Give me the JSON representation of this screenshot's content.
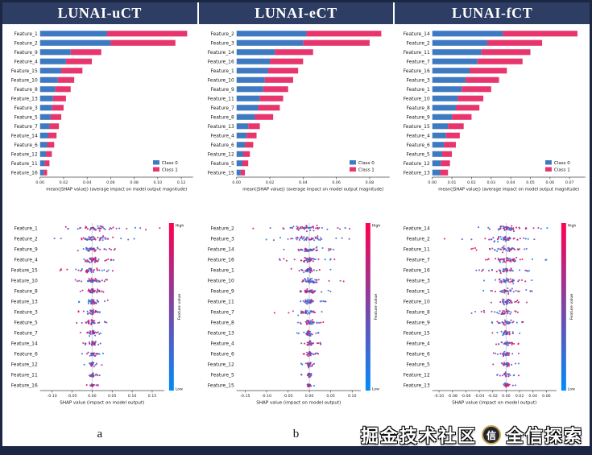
{
  "theme": {
    "header_bg": "#2e3d64",
    "frame_border": "#1c2743",
    "class0_color": "#3e7ac2",
    "class1_color": "#e8356d",
    "beeswarm_low_color": "#008bfb",
    "beeswarm_high_color": "#ff0051",
    "beeswarm_mid_color": "#7d45a5",
    "zero_line_color": "#d0d0d0"
  },
  "watermark": {
    "site": "掘金技术社区",
    "badge": "信",
    "author": "全信探索"
  },
  "panels": [
    {
      "title": "LUNAI-uCT",
      "caption": "a"
    },
    {
      "title": "LUNAI-eCT",
      "caption": "b"
    },
    {
      "title": "LUNAI-fCT",
      "caption": "c"
    }
  ],
  "chart_data": [
    {
      "panel": "LUNAI-uCT",
      "type": "bar",
      "orientation": "horizontal",
      "stacked": true,
      "xlabel": "mean(|SHAP value|) (average impact on model output magnitude)",
      "categories": [
        "Feature_1",
        "Feature_2",
        "Feature_9",
        "Feature_4",
        "Feature_15",
        "Feature_10",
        "Feature_8",
        "Feature_13",
        "Feature_3",
        "Feature_5",
        "Feature_7",
        "Feature_14",
        "Feature_6",
        "Feature_12",
        "Feature_11",
        "Feature_16"
      ],
      "series": [
        {
          "name": "Class 0",
          "color": "#3e7ac2",
          "values": [
            0.057,
            0.06,
            0.026,
            0.022,
            0.018,
            0.015,
            0.013,
            0.011,
            0.01,
            0.009,
            0.008,
            0.007,
            0.006,
            0.005,
            0.004,
            0.003
          ]
        },
        {
          "name": "Class 1",
          "color": "#e8356d",
          "values": [
            0.068,
            0.055,
            0.026,
            0.022,
            0.018,
            0.014,
            0.013,
            0.011,
            0.01,
            0.009,
            0.008,
            0.007,
            0.006,
            0.005,
            0.004,
            0.003
          ]
        }
      ],
      "xlim": [
        0,
        0.13
      ],
      "xticks": [
        0.0,
        0.02,
        0.04,
        0.06,
        0.08,
        0.1,
        0.12
      ],
      "legend_position": "lower right"
    },
    {
      "panel": "LUNAI-uCT",
      "type": "scatter",
      "subtype": "shap-beeswarm",
      "xlabel": "SHAP value (impact on model output)",
      "categories": [
        "Feature_1",
        "Feature_2",
        "Feature_9",
        "Feature_4",
        "Feature_15",
        "Feature_10",
        "Feature_8",
        "Feature_13",
        "Feature_3",
        "Feature_5",
        "Feature_7",
        "Feature_14",
        "Feature_6",
        "Feature_12",
        "Feature_11",
        "Feature_16"
      ],
      "x_range_per_feature": [
        [
          -0.08,
          0.17
        ],
        [
          -0.1,
          0.13
        ],
        [
          -0.06,
          0.08
        ],
        [
          -0.06,
          0.07
        ],
        [
          -0.11,
          0.06
        ],
        [
          -0.05,
          0.05
        ],
        [
          -0.05,
          0.05
        ],
        [
          -0.04,
          0.04
        ],
        [
          -0.05,
          0.04
        ],
        [
          -0.04,
          0.04
        ],
        [
          -0.04,
          0.04
        ],
        [
          -0.03,
          0.03
        ],
        [
          -0.03,
          0.03
        ],
        [
          -0.025,
          0.025
        ],
        [
          -0.02,
          0.02
        ],
        [
          -0.015,
          0.015
        ]
      ],
      "xlim": [
        -0.13,
        0.18
      ],
      "xticks": [
        -0.1,
        -0.05,
        0.0,
        0.05,
        0.1,
        0.15
      ],
      "colorbar": {
        "label": "Feature value",
        "high": "High",
        "low": "Low",
        "low_color": "#008bfb",
        "high_color": "#ff0051"
      }
    },
    {
      "panel": "LUNAI-eCT",
      "type": "bar",
      "orientation": "horizontal",
      "stacked": true,
      "xlabel": "mean(|SHAP value|) (average impact on model output magnitude)",
      "categories": [
        "Feature_2",
        "Feature_3",
        "Feature_14",
        "Feature_16",
        "Feature_1",
        "Feature_10",
        "Feature_9",
        "Feature_11",
        "Feature_7",
        "Feature_8",
        "Feature_13",
        "Feature_4",
        "Feature_6",
        "Feature_12",
        "Feature_5",
        "Feature_15"
      ],
      "series": [
        {
          "name": "Class 0",
          "color": "#3e7ac2",
          "values": [
            0.042,
            0.04,
            0.023,
            0.02,
            0.019,
            0.017,
            0.016,
            0.014,
            0.013,
            0.011,
            0.007,
            0.006,
            0.005,
            0.004,
            0.0035,
            0.0025
          ]
        },
        {
          "name": "Class 1",
          "color": "#e8356d",
          "values": [
            0.045,
            0.04,
            0.023,
            0.02,
            0.018,
            0.017,
            0.015,
            0.014,
            0.013,
            0.011,
            0.007,
            0.006,
            0.005,
            0.004,
            0.0035,
            0.0025
          ]
        }
      ],
      "xlim": [
        0,
        0.092
      ],
      "xticks": [
        0.0,
        0.02,
        0.04,
        0.06,
        0.08
      ],
      "legend_position": "lower right"
    },
    {
      "panel": "LUNAI-eCT",
      "type": "scatter",
      "subtype": "shap-beeswarm",
      "xlabel": "SHAP value (impact on model output)",
      "categories": [
        "Feature_2",
        "Feature_3",
        "Feature_14",
        "Feature_16",
        "Feature_1",
        "Feature_10",
        "Feature_9",
        "Feature_11",
        "Feature_7",
        "Feature_8",
        "Feature_13",
        "Feature_4",
        "Feature_6",
        "Feature_12",
        "Feature_5",
        "Feature_15"
      ],
      "x_range_per_feature": [
        [
          -0.15,
          0.1
        ],
        [
          -0.12,
          0.1
        ],
        [
          -0.08,
          0.06
        ],
        [
          -0.07,
          0.06
        ],
        [
          -0.06,
          0.05
        ],
        [
          -0.05,
          0.09
        ],
        [
          -0.05,
          0.05
        ],
        [
          -0.05,
          0.04
        ],
        [
          -0.09,
          0.04
        ],
        [
          -0.04,
          0.04
        ],
        [
          -0.035,
          0.03
        ],
        [
          -0.03,
          0.03
        ],
        [
          -0.025,
          0.025
        ],
        [
          -0.02,
          0.02
        ],
        [
          -0.02,
          0.02
        ],
        [
          -0.015,
          0.015
        ]
      ],
      "xlim": [
        -0.17,
        0.12
      ],
      "xticks": [
        -0.15,
        -0.1,
        -0.05,
        0.0,
        0.05,
        0.1
      ],
      "colorbar": {
        "label": "Feature value",
        "high": "High",
        "low": "Low",
        "low_color": "#008bfb",
        "high_color": "#ff0051"
      }
    },
    {
      "panel": "LUNAI-fCT",
      "type": "bar",
      "orientation": "horizontal",
      "stacked": true,
      "xlabel": "mean(|SHAP value|) (average impact on model output magnitude)",
      "categories": [
        "Feature_14",
        "Feature_2",
        "Feature_11",
        "Feature_7",
        "Feature_16",
        "Feature_3",
        "Feature_1",
        "Feature_10",
        "Feature_8",
        "Feature_9",
        "Feature_15",
        "Feature_4",
        "Feature_6",
        "Feature_5",
        "Feature_12",
        "Feature_13"
      ],
      "series": [
        {
          "name": "Class 0",
          "color": "#3e7ac2",
          "values": [
            0.036,
            0.028,
            0.025,
            0.023,
            0.019,
            0.017,
            0.015,
            0.013,
            0.012,
            0.01,
            0.008,
            0.007,
            0.006,
            0.005,
            0.0045,
            0.004
          ]
        },
        {
          "name": "Class 1",
          "color": "#e8356d",
          "values": [
            0.038,
            0.028,
            0.025,
            0.023,
            0.019,
            0.017,
            0.015,
            0.013,
            0.012,
            0.01,
            0.008,
            0.007,
            0.006,
            0.005,
            0.0045,
            0.004
          ]
        }
      ],
      "xlim": [
        0,
        0.078
      ],
      "xticks": [
        0.0,
        0.01,
        0.02,
        0.03,
        0.04,
        0.05,
        0.06,
        0.07
      ],
      "legend_position": "lower right"
    },
    {
      "panel": "LUNAI-fCT",
      "type": "scatter",
      "subtype": "shap-beeswarm",
      "xlabel": "SHAP value (impact on model output)",
      "categories": [
        "Feature_14",
        "Feature_2",
        "Feature_11",
        "Feature_7",
        "Feature_16",
        "Feature_3",
        "Feature_1",
        "Feature_10",
        "Feature_8",
        "Feature_9",
        "Feature_15",
        "Feature_4",
        "Feature_6",
        "Feature_5",
        "Feature_12",
        "Feature_13"
      ],
      "x_range_per_feature": [
        [
          -0.05,
          0.065
        ],
        [
          -0.1,
          0.05
        ],
        [
          -0.06,
          0.05
        ],
        [
          -0.05,
          0.06
        ],
        [
          -0.05,
          0.04
        ],
        [
          -0.04,
          0.04
        ],
        [
          -0.04,
          0.04
        ],
        [
          -0.035,
          0.035
        ],
        [
          -0.06,
          0.03
        ],
        [
          -0.03,
          0.03
        ],
        [
          -0.03,
          0.03
        ],
        [
          -0.025,
          0.025
        ],
        [
          -0.02,
          0.02
        ],
        [
          -0.02,
          0.02
        ],
        [
          -0.02,
          0.02
        ],
        [
          -0.015,
          0.015
        ]
      ],
      "xlim": [
        -0.11,
        0.075
      ],
      "xticks": [
        -0.1,
        -0.08,
        -0.06,
        -0.04,
        -0.02,
        0.0,
        0.02,
        0.04,
        0.06
      ],
      "colorbar": {
        "label": "Feature value",
        "high": "High",
        "low": "Low",
        "low_color": "#008bfb",
        "high_color": "#ff0051"
      }
    }
  ]
}
